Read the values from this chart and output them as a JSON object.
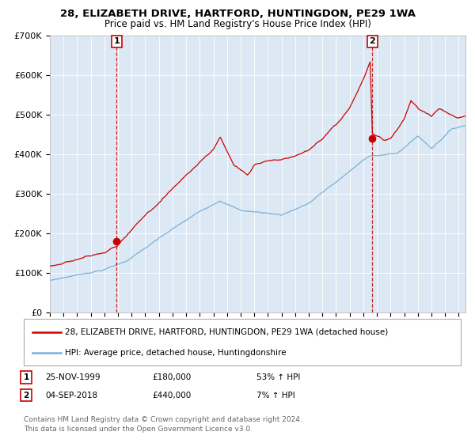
{
  "title1": "28, ELIZABETH DRIVE, HARTFORD, HUNTINGDON, PE29 1WA",
  "title2": "Price paid vs. HM Land Registry's House Price Index (HPI)",
  "bg_color": "#dce9f5",
  "red_color": "#cc0000",
  "blue_color": "#7ab0d4",
  "ylim": [
    0,
    700000
  ],
  "yticks": [
    0,
    100000,
    200000,
    300000,
    400000,
    500000,
    600000,
    700000
  ],
  "ytick_labels": [
    "£0",
    "£100K",
    "£200K",
    "£300K",
    "£400K",
    "£500K",
    "£600K",
    "£700K"
  ],
  "sale1_date": "25-NOV-1999",
  "sale1_price": 180000,
  "sale1_x": 1999.9,
  "sale2_date": "04-SEP-2018",
  "sale2_price": 440000,
  "sale2_x": 2018.67,
  "legend_line1": "28, ELIZABETH DRIVE, HARTFORD, HUNTINGDON, PE29 1WA (detached house)",
  "legend_line2": "HPI: Average price, detached house, Huntingdonshire",
  "footer1": "Contains HM Land Registry data © Crown copyright and database right 2024.",
  "footer2": "This data is licensed under the Open Government Licence v3.0.",
  "xmin": 1995.0,
  "xmax": 2025.5,
  "sale1_pct": "53% ↑ HPI",
  "sale2_pct": "7% ↑ HPI",
  "sale1_price_str": "£180,000",
  "sale2_price_str": "£440,000"
}
